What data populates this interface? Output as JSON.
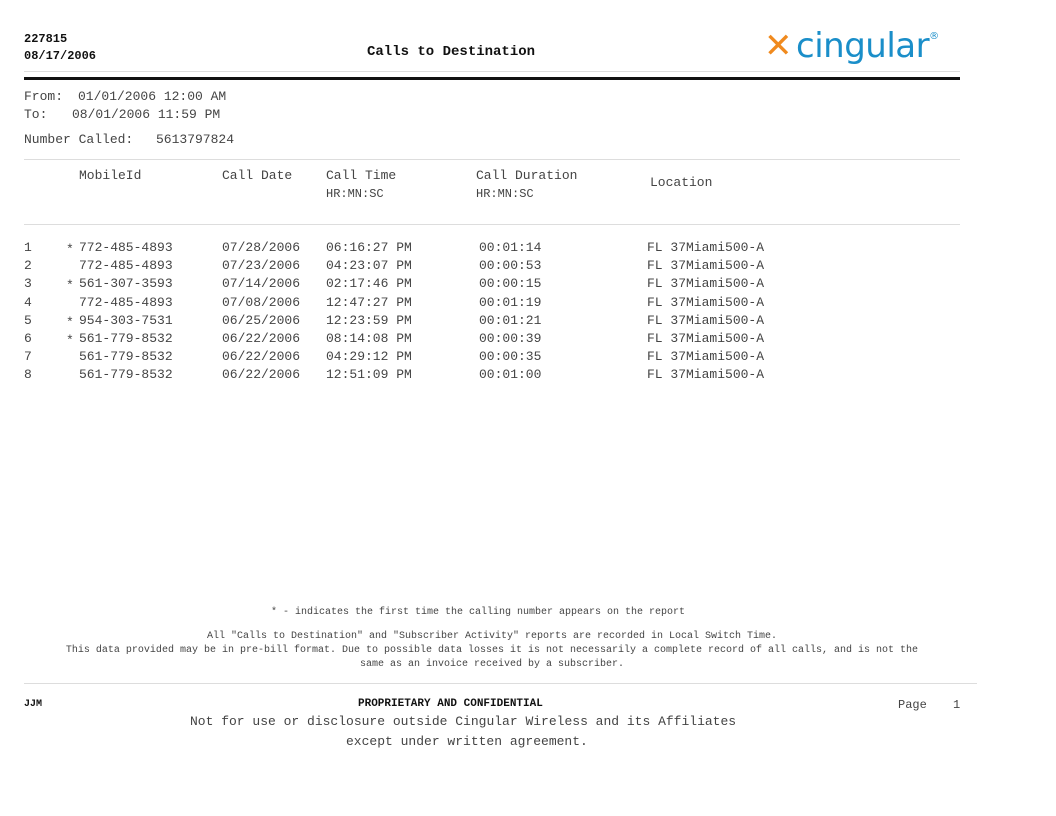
{
  "header": {
    "report_id": "227815",
    "report_date": "08/17/2006",
    "title": "Calls to Destination",
    "logo_text": "cingular",
    "logo_mark": "x",
    "logo_registered": "®"
  },
  "criteria": {
    "from_label": "From:",
    "from_value": "01/01/2006 12:00 AM",
    "to_label": "To:",
    "to_value": "08/01/2006 11:59 PM",
    "number_label": "Number Called:",
    "number_value": "5613797824"
  },
  "table": {
    "columns": [
      {
        "line1": "MobileId",
        "line2": ""
      },
      {
        "line1": "Call Date",
        "line2": ""
      },
      {
        "line1": "Call Time",
        "line2": "HR:MN:SC"
      },
      {
        "line1": "Call Duration",
        "line2": "HR:MN:SC"
      },
      {
        "line1": "Location",
        "line2": ""
      }
    ],
    "rows": [
      {
        "n": "1",
        "star": "*",
        "mobile": "772-485-4893",
        "date": "07/28/2006",
        "time": "06:16:27 PM",
        "duration": "00:01:14",
        "location": "FL 37Miami500-A"
      },
      {
        "n": "2",
        "star": "",
        "mobile": "772-485-4893",
        "date": "07/23/2006",
        "time": "04:23:07 PM",
        "duration": "00:00:53",
        "location": "FL 37Miami500-A"
      },
      {
        "n": "3",
        "star": "*",
        "mobile": "561-307-3593",
        "date": "07/14/2006",
        "time": "02:17:46 PM",
        "duration": "00:00:15",
        "location": "FL 37Miami500-A"
      },
      {
        "n": "4",
        "star": "",
        "mobile": "772-485-4893",
        "date": "07/08/2006",
        "time": "12:47:27 PM",
        "duration": "00:01:19",
        "location": "FL 37Miami500-A"
      },
      {
        "n": "5",
        "star": "*",
        "mobile": "954-303-7531",
        "date": "06/25/2006",
        "time": "12:23:59 PM",
        "duration": "00:01:21",
        "location": "FL 37Miami500-A"
      },
      {
        "n": "6",
        "star": "*",
        "mobile": "561-779-8532",
        "date": "06/22/2006",
        "time": "08:14:08 PM",
        "duration": "00:00:39",
        "location": "FL 37Miami500-A"
      },
      {
        "n": "7",
        "star": "",
        "mobile": "561-779-8532",
        "date": "06/22/2006",
        "time": "04:29:12 PM",
        "duration": "00:00:35",
        "location": "FL 37Miami500-A"
      },
      {
        "n": "8",
        "star": "",
        "mobile": "561-779-8532",
        "date": "06/22/2006",
        "time": "12:51:09 PM",
        "duration": "00:01:00",
        "location": "FL 37Miami500-A"
      }
    ]
  },
  "notes": {
    "legend": "* - indicates the first time the calling number appears on the report",
    "line1": "All \"Calls to Destination\" and \"Subscriber Activity\" reports are recorded in Local Switch Time.",
    "line2": "This data provided may be in pre-bill format. Due to possible data losses it is not necessarily a complete record of all calls, and is not the",
    "line3": "same as an invoice received by a subscriber."
  },
  "footer": {
    "initials": "JJM",
    "confidential": "PROPRIETARY AND CONFIDENTIAL",
    "page_label": "Page",
    "page_number": "1",
    "disclaimer1": "Not for use or disclosure outside Cingular Wireless and its Affiliates",
    "disclaimer2": "except under written agreement."
  }
}
